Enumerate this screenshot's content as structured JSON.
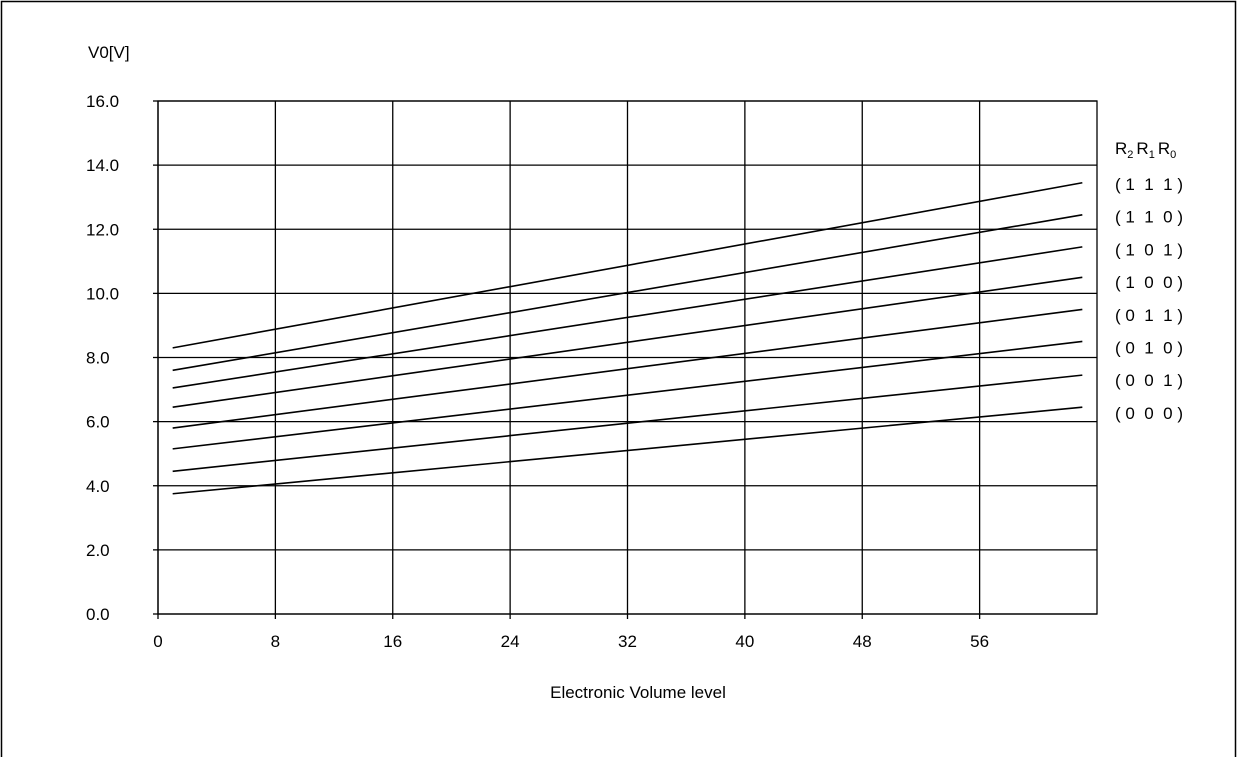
{
  "chart_data": {
    "type": "line",
    "title": "",
    "xlabel": "Electronic Volume level",
    "ylabel": "V0[V]",
    "xlim": [
      0,
      64
    ],
    "ylim": [
      0,
      16
    ],
    "x_ticks": [
      "0",
      "8",
      "16",
      "24",
      "32",
      "40",
      "48",
      "56"
    ],
    "y_ticks": [
      "0.0",
      "2.0",
      "4.0",
      "6.0",
      "8.0",
      "10.0",
      "12.0",
      "14.0",
      "16.0"
    ],
    "x": [
      1,
      63
    ],
    "legend_title": {
      "r2": "R",
      "r2_sub": "2",
      "r1": "R",
      "r1_sub": "1",
      "r0": "R",
      "r0_sub": "0"
    },
    "series": [
      {
        "name": "( 1  1  1 )",
        "values": [
          8.3,
          13.45
        ]
      },
      {
        "name": "( 1  1  0 )",
        "values": [
          7.6,
          12.45
        ]
      },
      {
        "name": "( 1  0  1 )",
        "values": [
          7.05,
          11.45
        ]
      },
      {
        "name": "( 1  0  0 )",
        "values": [
          6.45,
          10.5
        ]
      },
      {
        "name": "( 0  1  1 )",
        "values": [
          5.8,
          9.5
        ]
      },
      {
        "name": "( 0  1  0 )",
        "values": [
          5.15,
          8.5
        ]
      },
      {
        "name": "( 0  0  1 )",
        "values": [
          4.45,
          7.45
        ]
      },
      {
        "name": "( 0  0  0 )",
        "values": [
          3.75,
          6.45
        ]
      }
    ],
    "grid": true,
    "legend_position": "right"
  }
}
